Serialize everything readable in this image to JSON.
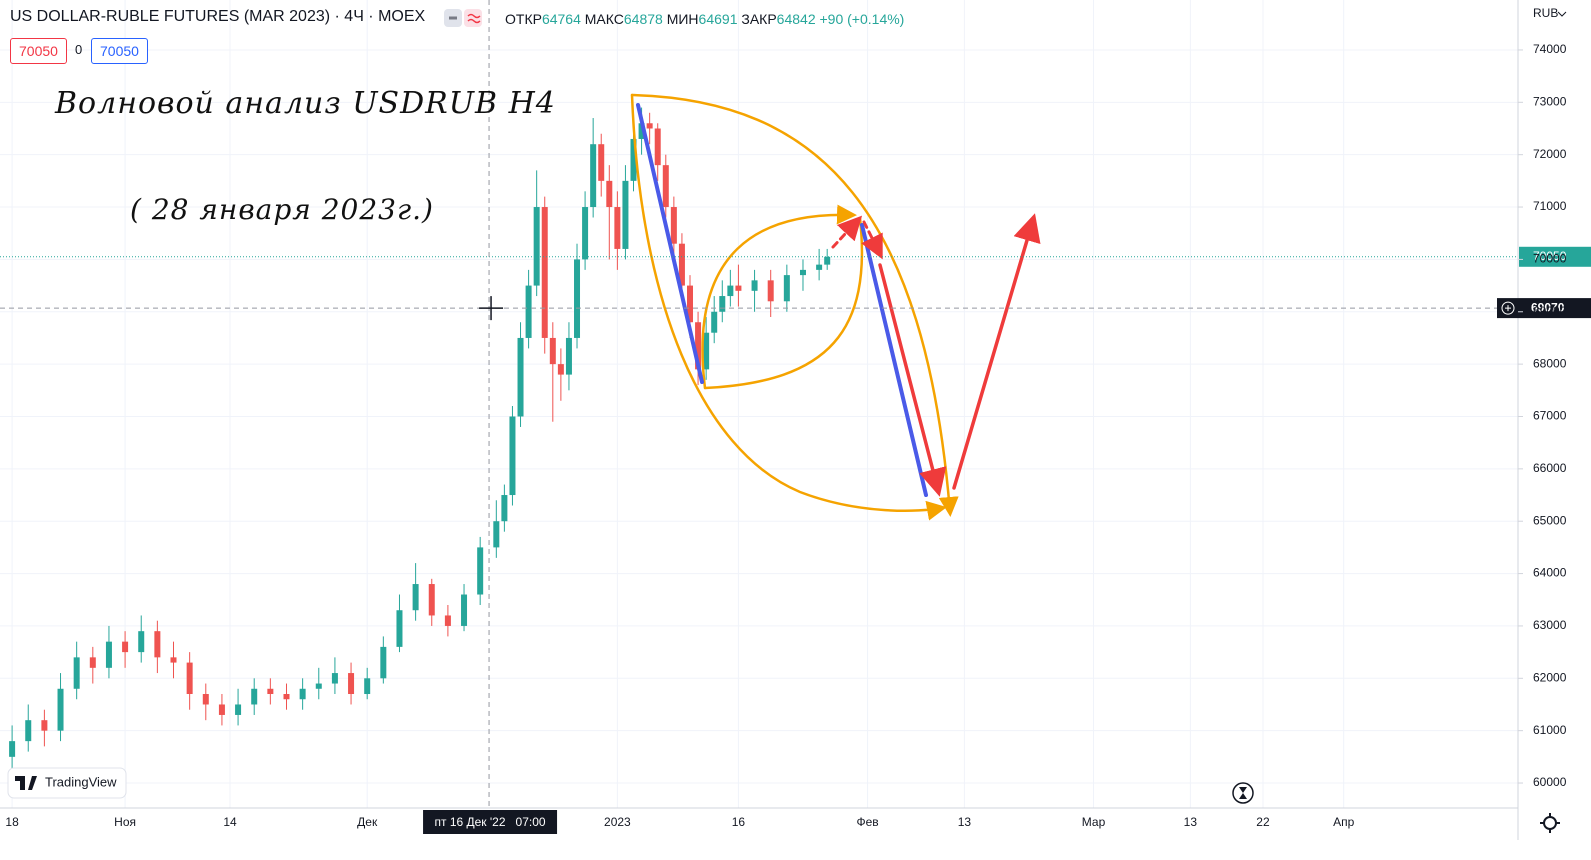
{
  "chart_data": {
    "type": "candlestick",
    "header": {
      "symbol": "US DOLLAR-RUBLE FUTURES (MAR 2023) · 4Ч · MOEX",
      "open_label": "ОТКР",
      "open": 64764,
      "high_label": "МАКС",
      "high": 64878,
      "low_label": "МИН",
      "low": 64691,
      "close_label": "ЗАКР",
      "close": 64842,
      "change": "+90 (+0.14%)",
      "sell": 70050,
      "spread": 0,
      "buy": 70050
    },
    "annotations": [
      "Волновой анализ USDRUB H4",
      "( 28 января 2023г.)"
    ],
    "y_unit": "RUB",
    "logo": "TradingView",
    "x": [
      0,
      2,
      4,
      6,
      8,
      10,
      12,
      14,
      16,
      18,
      20,
      22,
      24,
      26,
      28,
      30,
      32,
      34,
      36,
      38,
      40,
      42,
      44,
      46,
      48,
      50,
      52,
      54,
      56,
      58,
      60,
      61,
      62,
      63,
      64,
      65,
      66,
      67,
      68,
      69,
      70,
      71,
      72,
      73,
      74,
      75,
      76,
      77,
      78,
      79,
      80,
      81,
      82,
      83,
      84,
      85,
      86,
      87,
      88,
      89,
      90,
      92,
      94,
      96,
      98,
      100,
      101
    ],
    "open": [
      60500,
      60800,
      61200,
      61000,
      61800,
      62400,
      62200,
      62700,
      62500,
      62900,
      62400,
      62300,
      61700,
      61500,
      61300,
      61500,
      61800,
      61700,
      61600,
      61800,
      61900,
      62100,
      61700,
      62000,
      62600,
      63300,
      63800,
      63200,
      63000,
      63600,
      64500,
      65000,
      65500,
      67000,
      68500,
      69500,
      71000,
      68500,
      68000,
      67800,
      68500,
      70000,
      71000,
      72200,
      71500,
      71000,
      70200,
      71500,
      72300,
      72600,
      72500,
      71800,
      71000,
      70300,
      69500,
      68800,
      67900,
      68600,
      69000,
      69300,
      69500,
      69400,
      69600,
      69200,
      69700,
      69800,
      69900
    ],
    "high": [
      61100,
      61500,
      61400,
      62100,
      62700,
      62600,
      63000,
      62900,
      63200,
      63100,
      62700,
      62500,
      61900,
      61700,
      61800,
      62000,
      62000,
      61900,
      62000,
      62200,
      62400,
      62300,
      62200,
      62800,
      63600,
      64200,
      63900,
      63400,
      63800,
      64700,
      65400,
      65700,
      67200,
      68800,
      69800,
      71700,
      71200,
      68800,
      68300,
      68800,
      70300,
      71300,
      72700,
      72400,
      71800,
      71300,
      71800,
      72600,
      72900,
      72800,
      72600,
      72000,
      71200,
      70500,
      69700,
      69000,
      68900,
      69300,
      69600,
      69800,
      69900,
      69800,
      69800,
      69900,
      70000,
      70200,
      70200
    ],
    "low": [
      60200,
      60600,
      60700,
      60800,
      61600,
      61900,
      62000,
      62200,
      62300,
      62100,
      62000,
      61400,
      61200,
      61100,
      61100,
      61300,
      61500,
      61400,
      61400,
      61600,
      61700,
      61500,
      61600,
      61900,
      62500,
      63100,
      63000,
      62800,
      62900,
      63400,
      64300,
      64800,
      65300,
      66800,
      68300,
      69300,
      68200,
      66900,
      67300,
      67500,
      68300,
      69800,
      70800,
      71200,
      70000,
      69800,
      70000,
      71300,
      72000,
      72200,
      71500,
      70800,
      70000,
      69200,
      68500,
      67600,
      67700,
      68400,
      68800,
      69100,
      69100,
      69000,
      68900,
      69000,
      69400,
      69600,
      69800
    ],
    "close": [
      60800,
      61200,
      61000,
      61800,
      62400,
      62200,
      62700,
      62500,
      62900,
      62400,
      62300,
      61700,
      61500,
      61300,
      61500,
      61800,
      61700,
      61600,
      61800,
      61900,
      62100,
      61700,
      62000,
      62600,
      63300,
      63800,
      63200,
      63000,
      63600,
      64500,
      65000,
      65500,
      67000,
      68500,
      69500,
      71000,
      68500,
      68000,
      67800,
      68500,
      70000,
      71000,
      72200,
      71500,
      71000,
      70200,
      71500,
      72300,
      72600,
      72500,
      71800,
      71000,
      70300,
      69500,
      68800,
      67900,
      68600,
      69000,
      69300,
      69500,
      69400,
      69600,
      69200,
      69700,
      69800,
      69900,
      70050
    ],
    "up_color": "#26a69a",
    "down_color": "#ef5350",
    "last_price": 70050,
    "crosshair_price": 69070,
    "crosshair_x": 59.1,
    "crosshair_time": "пт 16 Дек '22   07:00",
    "xlim": [
      -1.5,
      186.6
    ],
    "xticks": [
      {
        "value": 0,
        "label": "18"
      },
      {
        "value": 14,
        "label": "Ноя"
      },
      {
        "value": 27,
        "label": "14"
      },
      {
        "value": 44,
        "label": "Дек"
      },
      {
        "value": 75,
        "label": "2023"
      },
      {
        "value": 90,
        "label": "16"
      },
      {
        "value": 106,
        "label": "Фев"
      },
      {
        "value": 118,
        "label": "13"
      },
      {
        "value": 134,
        "label": "Мар"
      },
      {
        "value": 146,
        "label": "13"
      },
      {
        "value": 155,
        "label": "22"
      },
      {
        "value": 165,
        "label": "Апр"
      }
    ],
    "ylim": [
      59523,
      74954
    ],
    "yticks": [
      60000,
      61000,
      62000,
      63000,
      64000,
      65000,
      66000,
      67000,
      68000,
      69000,
      70000,
      71000,
      72000,
      73000,
      74000
    ],
    "grid": true
  }
}
